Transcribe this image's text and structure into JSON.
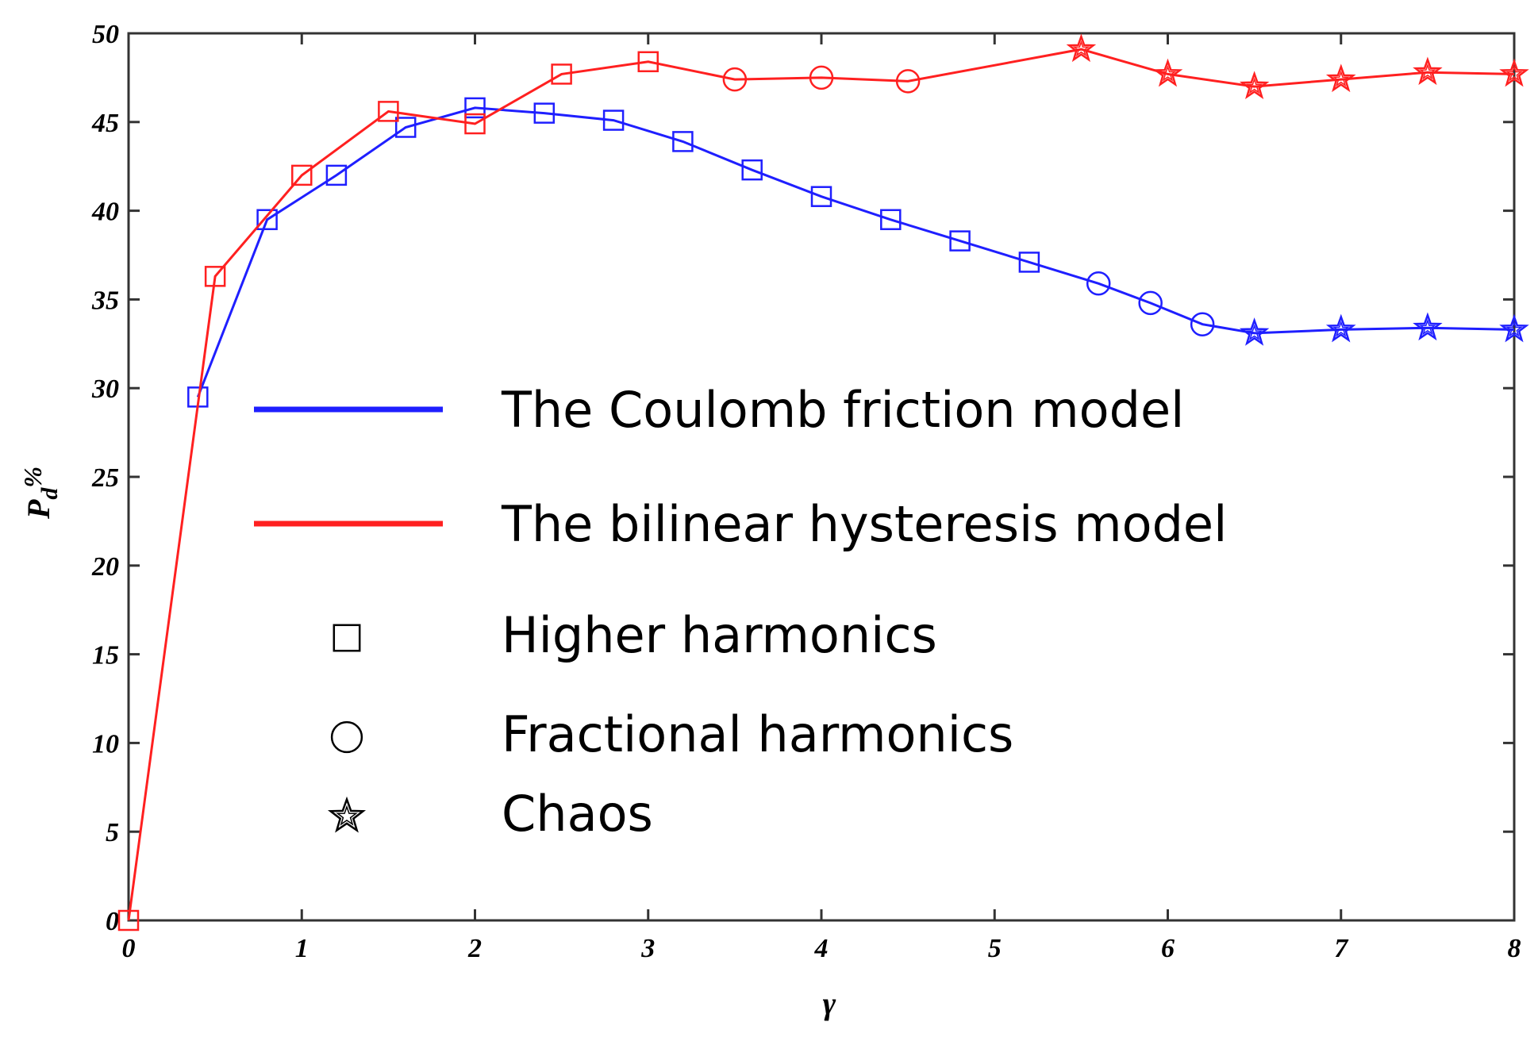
{
  "chart_data": {
    "type": "line",
    "xlabel": "γ",
    "ylabel": "P_d%",
    "ylabel_main": "P",
    "ylabel_sub": "d",
    "ylabel_suffix": "%",
    "xlim": [
      0,
      8
    ],
    "ylim": [
      0,
      50
    ],
    "xticks": [
      0,
      1,
      2,
      3,
      4,
      5,
      6,
      7,
      8
    ],
    "yticks": [
      0,
      5,
      10,
      15,
      20,
      25,
      30,
      35,
      40,
      45,
      50
    ],
    "grid": false,
    "legend_position": "center",
    "legend": [
      {
        "kind": "line",
        "color": "#1f1fff",
        "label": "The Coulomb friction model"
      },
      {
        "kind": "line",
        "color": "#ff2020",
        "label": "The bilinear hysteresis model"
      },
      {
        "kind": "marker",
        "marker": "square",
        "label": "Higher harmonics"
      },
      {
        "kind": "marker",
        "marker": "circle",
        "label": "Fractional harmonics"
      },
      {
        "kind": "marker",
        "marker": "star",
        "label": "Chaos"
      }
    ],
    "series": [
      {
        "name": "The Coulomb friction model",
        "color": "#1f1fff",
        "points": [
          {
            "x": 0.4,
            "y": 29.5,
            "marker": "square"
          },
          {
            "x": 0.8,
            "y": 39.5,
            "marker": "square"
          },
          {
            "x": 1.2,
            "y": 42.0,
            "marker": "square"
          },
          {
            "x": 1.6,
            "y": 44.7,
            "marker": "square"
          },
          {
            "x": 2.0,
            "y": 45.8,
            "marker": "square"
          },
          {
            "x": 2.4,
            "y": 45.5,
            "marker": "square"
          },
          {
            "x": 2.8,
            "y": 45.1,
            "marker": "square"
          },
          {
            "x": 3.2,
            "y": 43.9,
            "marker": "square"
          },
          {
            "x": 3.6,
            "y": 42.3,
            "marker": "square"
          },
          {
            "x": 4.0,
            "y": 40.8,
            "marker": "square"
          },
          {
            "x": 4.4,
            "y": 39.5,
            "marker": "square"
          },
          {
            "x": 4.8,
            "y": 38.3,
            "marker": "square"
          },
          {
            "x": 5.2,
            "y": 37.1,
            "marker": "square"
          },
          {
            "x": 5.6,
            "y": 35.9,
            "marker": "circle"
          },
          {
            "x": 5.9,
            "y": 34.8,
            "marker": "circle"
          },
          {
            "x": 6.2,
            "y": 33.6,
            "marker": "circle"
          },
          {
            "x": 6.5,
            "y": 33.1,
            "marker": "star"
          },
          {
            "x": 7.0,
            "y": 33.3,
            "marker": "star"
          },
          {
            "x": 7.5,
            "y": 33.4,
            "marker": "star"
          },
          {
            "x": 8.0,
            "y": 33.3,
            "marker": "star"
          }
        ]
      },
      {
        "name": "The bilinear hysteresis model",
        "color": "#ff2020",
        "points": [
          {
            "x": 0.0,
            "y": 0.0,
            "marker": "square"
          },
          {
            "x": 0.5,
            "y": 36.3,
            "marker": "square"
          },
          {
            "x": 1.0,
            "y": 42.0,
            "marker": "square"
          },
          {
            "x": 1.5,
            "y": 45.6,
            "marker": "square"
          },
          {
            "x": 2.0,
            "y": 44.9,
            "marker": "square"
          },
          {
            "x": 2.5,
            "y": 47.7,
            "marker": "square"
          },
          {
            "x": 3.0,
            "y": 48.4,
            "marker": "square"
          },
          {
            "x": 3.5,
            "y": 47.4,
            "marker": "circle"
          },
          {
            "x": 4.0,
            "y": 47.5,
            "marker": "circle"
          },
          {
            "x": 4.5,
            "y": 47.3,
            "marker": "circle"
          },
          {
            "x": 5.5,
            "y": 49.1,
            "marker": "star"
          },
          {
            "x": 6.0,
            "y": 47.7,
            "marker": "star"
          },
          {
            "x": 6.5,
            "y": 47.0,
            "marker": "star"
          },
          {
            "x": 7.0,
            "y": 47.4,
            "marker": "star"
          },
          {
            "x": 7.5,
            "y": 47.8,
            "marker": "star"
          },
          {
            "x": 8.0,
            "y": 47.7,
            "marker": "star"
          }
        ]
      }
    ]
  }
}
